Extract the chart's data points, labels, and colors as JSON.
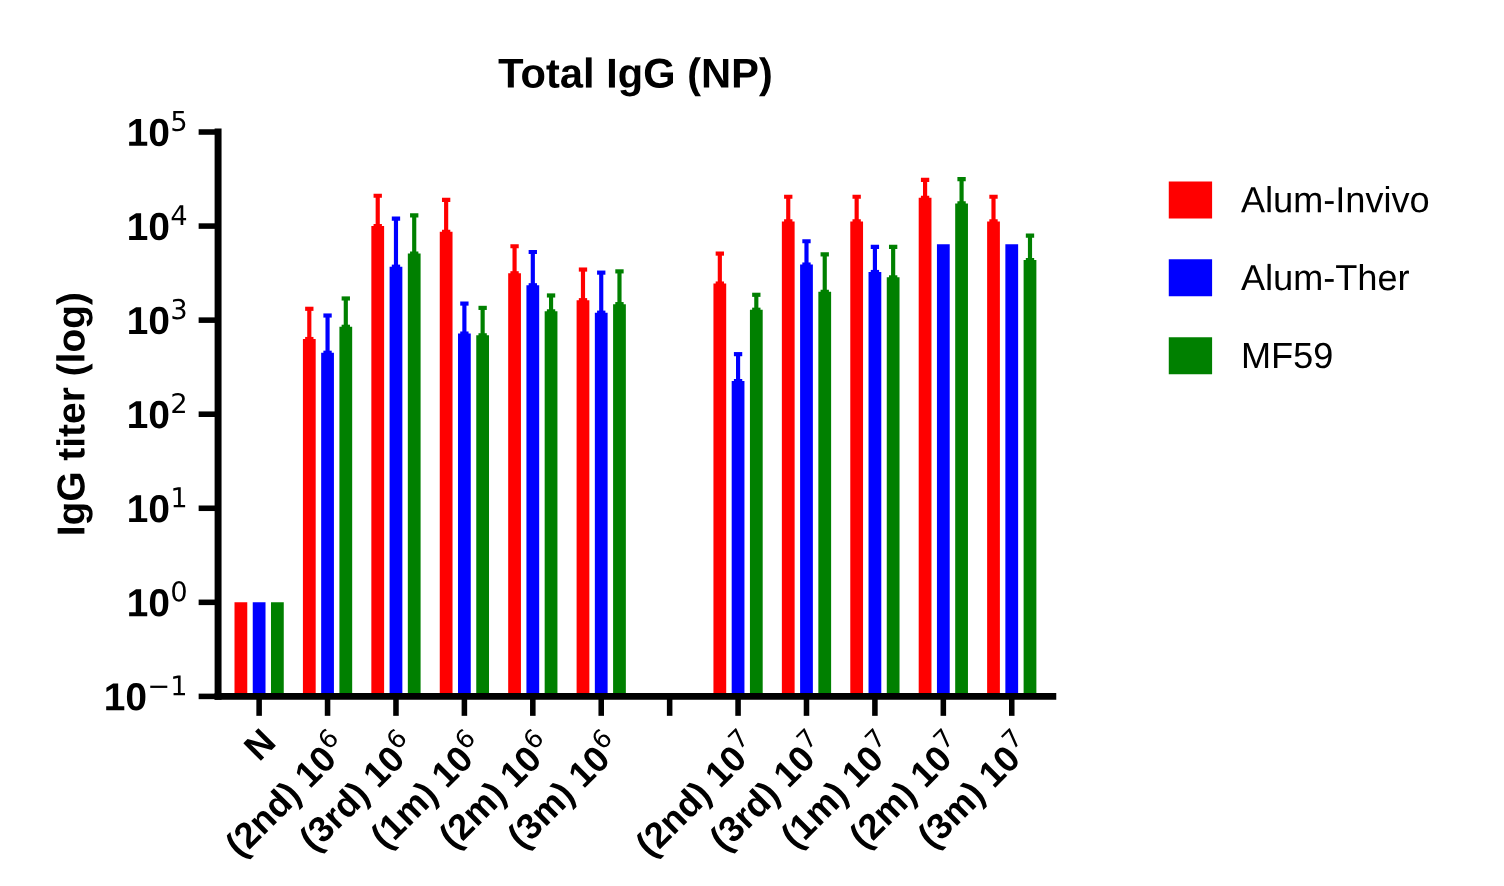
{
  "chart_data": {
    "type": "bar",
    "title": "Total IgG (NP)",
    "ylabel": "IgG titer (log)",
    "categories": [
      "N",
      "(2nd) 10$^{6}$",
      "(3rd) 10$^{6}$",
      "(1m) 10$^{6}$",
      "(2m) 10$^{6}$",
      "(3m) 10$^{6}$",
      null,
      "(2nd) 10$^{7}$",
      "(3rd) 10$^{7}$",
      "(1m) 10$^{7}$",
      "(2m) 10$^{7}$",
      "(3m) 10$^{7}$"
    ],
    "series": [
      {
        "name": "Alum-Invivo",
        "color": "#ff0000",
        "values": [
          1,
          630,
          10000,
          8700,
          3150,
          1630,
          null,
          2450,
          11200,
          11200,
          20000,
          11200
        ],
        "errors": [
          null,
          [
            630,
            1320
          ],
          [
            10000,
            21000
          ],
          [
            8700,
            19000
          ],
          [
            3150,
            6100
          ],
          [
            1630,
            3450
          ],
          null,
          [
            2450,
            5100
          ],
          [
            11200,
            20500
          ],
          [
            11200,
            20500
          ],
          [
            20000,
            31000
          ],
          [
            11200,
            20500
          ]
        ]
      },
      {
        "name": "Alum-Ther",
        "color": "#0000ff",
        "values": [
          1,
          450,
          3700,
          720,
          2350,
          1200,
          null,
          225,
          3900,
          3250,
          6400,
          6400
        ],
        "errors": [
          null,
          [
            450,
            1120
          ],
          [
            3700,
            12000
          ],
          [
            720,
            1500
          ],
          [
            2350,
            5300
          ],
          [
            1200,
            3200
          ],
          null,
          [
            225,
            435
          ],
          [
            3900,
            6900
          ],
          [
            3250,
            6000
          ],
          null,
          null
        ]
      },
      {
        "name": "MF59",
        "color": "#008000",
        "values": [
          1,
          850,
          5100,
          690,
          1240,
          1480,
          null,
          1290,
          2000,
          2850,
          17400,
          4350
        ],
        "errors": [
          null,
          [
            850,
            1700
          ],
          [
            5100,
            13000
          ],
          [
            690,
            1350
          ],
          [
            1240,
            1830
          ],
          [
            1480,
            3300
          ],
          null,
          [
            1290,
            1860
          ],
          [
            2000,
            5000
          ],
          [
            2850,
            6000
          ],
          [
            17400,
            31500
          ],
          [
            4350,
            7900
          ]
        ]
      }
    ],
    "log": "y",
    "ylim": [
      0.1,
      100000
    ],
    "yticks": [
      {
        "value": 0.1,
        "label": "10$^{−1}$"
      },
      {
        "value": 1,
        "label": "10$^{0}$"
      },
      {
        "value": 10,
        "label": "10$^{1}$"
      },
      {
        "value": 100,
        "label": "10$^{2}$"
      },
      {
        "value": 1000,
        "label": "10$^{3}$"
      },
      {
        "value": 10000,
        "label": "10$^{4}$"
      },
      {
        "value": 100000,
        "label": "10$^{5}$"
      }
    ],
    "legend": "right",
    "grid": false
  }
}
